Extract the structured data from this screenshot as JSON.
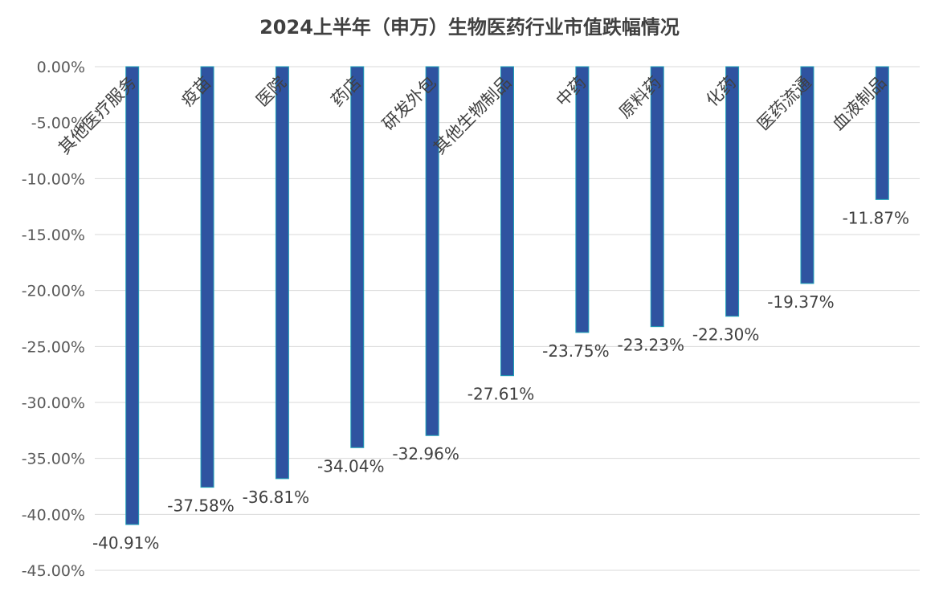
{
  "chart_data": {
    "type": "bar",
    "title": "2024上半年（申万）生物医药行业市值跌幅情况",
    "categories": [
      "其他医疗服务",
      "疫苗",
      "医院",
      "药店",
      "研发外包",
      "其他生物制品",
      "中药",
      "原料药",
      "化药",
      "医药流通",
      "血液制品"
    ],
    "values": [
      -40.91,
      -37.58,
      -36.81,
      -34.04,
      -32.96,
      -27.61,
      -23.75,
      -23.23,
      -22.3,
      -19.37,
      -11.87
    ],
    "data_labels": [
      "-40.91%",
      "-37.58%",
      "-36.81%",
      "-34.04%",
      "-32.96%",
      "-27.61%",
      "-23.75%",
      "-23.23%",
      "-22.30%",
      "-19.37%",
      "-11.87%"
    ],
    "yticks": [
      "0.00%",
      "-5.00%",
      "-10.00%",
      "-15.00%",
      "-20.00%",
      "-25.00%",
      "-30.00%",
      "-35.00%",
      "-40.00%",
      "-45.00%"
    ],
    "ylim": [
      -45,
      0
    ],
    "grid": true,
    "legend": "none",
    "colors": {
      "bar": "#2F53A0",
      "bar_edge": "#1FA3B8",
      "grid": "#D9D9D9"
    }
  }
}
